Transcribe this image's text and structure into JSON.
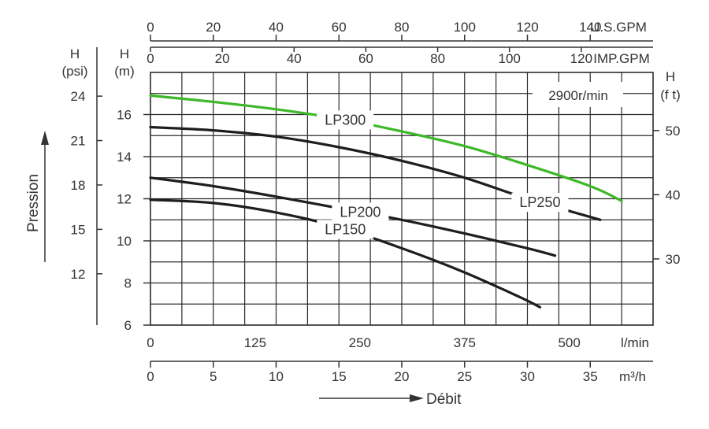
{
  "chart_data": {
    "type": "line",
    "title": "",
    "speed_label": "2900r/min",
    "x_axes": {
      "lmin": {
        "unit": "l/min",
        "range": [
          0,
          600
        ],
        "ticks": [
          0,
          125,
          250,
          375,
          500
        ]
      },
      "m3h": {
        "unit": "m³/h",
        "range": [
          0,
          40
        ],
        "ticks": [
          0,
          5,
          10,
          15,
          20,
          25,
          30,
          35
        ]
      },
      "imp_gpm": {
        "unit": "IMP.GPM",
        "range": [
          0,
          140
        ],
        "ticks": [
          0,
          20,
          40,
          60,
          80,
          100,
          120
        ]
      },
      "us_gpm": {
        "unit": "U.S.GPM",
        "range": [
          0,
          160
        ],
        "ticks": [
          0,
          20,
          40,
          60,
          80,
          100,
          120,
          140
        ]
      }
    },
    "y_axes": {
      "m": {
        "label_line1": "H",
        "label_line2": "(m)",
        "range": [
          6,
          18
        ],
        "ticks": [
          6,
          8,
          10,
          12,
          14,
          16
        ]
      },
      "psi": {
        "label_line1": "H",
        "label_line2": "(psi)",
        "ticks": [
          12,
          15,
          18,
          21,
          24
        ]
      },
      "ft": {
        "label_line1": "H",
        "label_line2": "(f t)",
        "ticks": [
          30,
          40,
          50
        ]
      }
    },
    "ylabel": "Pression",
    "xlabel": "Débit",
    "series": [
      {
        "name": "LP300",
        "color": "#3db828",
        "labelAt": 15.5,
        "x": [
          0,
          5,
          10,
          15,
          20,
          25,
          30,
          35,
          37.5
        ],
        "y": [
          16.9,
          16.6,
          16.25,
          15.8,
          15.2,
          14.5,
          13.6,
          12.6,
          11.9
        ]
      },
      {
        "name": "LP250",
        "color": "#1e1e1e",
        "labelAt": 31.0,
        "x": [
          0,
          5,
          10,
          15,
          20,
          25,
          30,
          35.8
        ],
        "y": [
          15.4,
          15.25,
          14.95,
          14.45,
          13.8,
          13.0,
          12.0,
          11.0
        ]
      },
      {
        "name": "LP200",
        "color": "#1e1e1e",
        "labelAt": 16.7,
        "x": [
          0,
          5,
          10,
          15,
          20,
          25,
          30,
          32.2
        ],
        "y": [
          13.0,
          12.6,
          12.1,
          11.55,
          11.0,
          10.35,
          9.65,
          9.3
        ]
      },
      {
        "name": "LP150",
        "color": "#1e1e1e",
        "labelAt": 15.5,
        "x": [
          0,
          5,
          10,
          15,
          20,
          25,
          29.5,
          31.0
        ],
        "y": [
          11.95,
          11.8,
          11.35,
          10.65,
          9.65,
          8.5,
          7.3,
          6.85
        ]
      }
    ]
  }
}
